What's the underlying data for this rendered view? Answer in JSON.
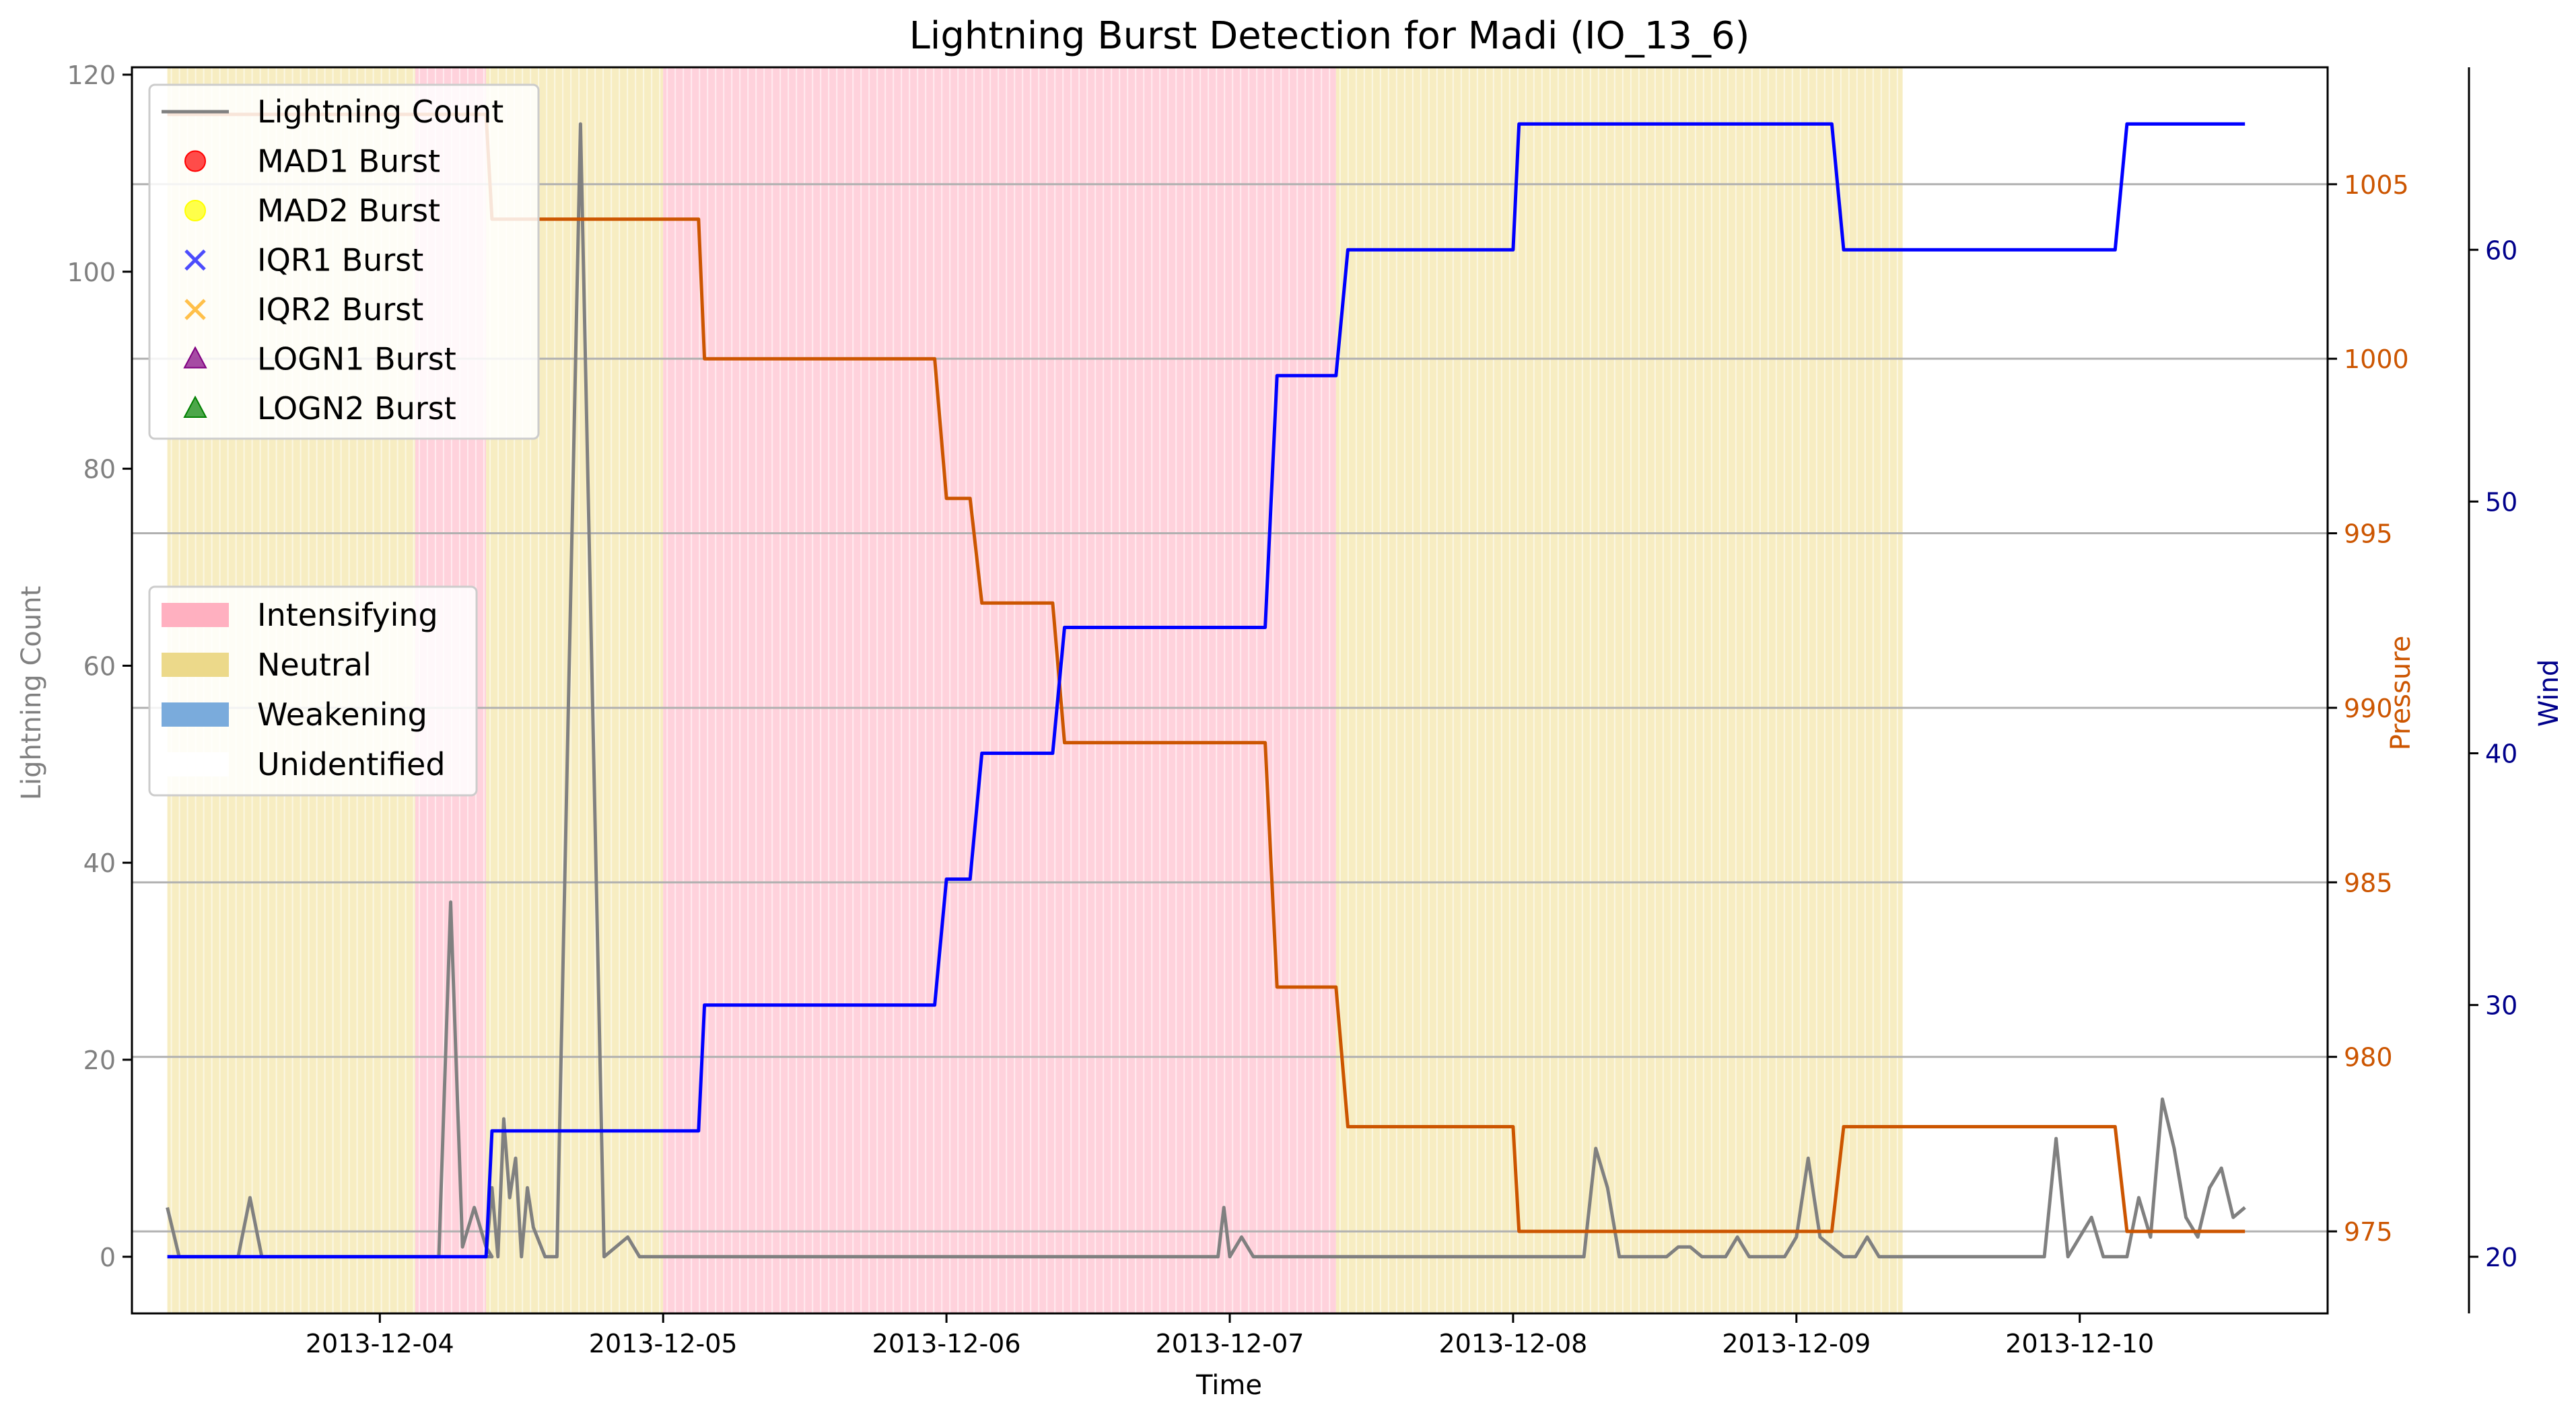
{
  "chart_data": {
    "type": "line",
    "title": "Lightning Burst Detection for Madi (IO_13_6)",
    "xlabel": "Time",
    "x_ticks": [
      "2013-12-04",
      "2013-12-05",
      "2013-12-06",
      "2013-12-07",
      "2013-12-08",
      "2013-12-09",
      "2013-12-10"
    ],
    "x_range": [
      "2013-12-03 03:00",
      "2013-12-10 21:00"
    ],
    "grid": "horizontal lines at right-axis ticks",
    "axes": {
      "left": {
        "label": "Lightning Count",
        "ylim": [
          -5.75,
          120.75
        ],
        "ticks": [
          0,
          20,
          40,
          60,
          80,
          100,
          120
        ],
        "color": "#808080"
      },
      "pressure": {
        "label": "Pressure",
        "ylim": [
          972.65,
          1008.35
        ],
        "ticks": [
          975,
          980,
          985,
          990,
          995,
          1000,
          1005
        ],
        "color": "#cc5500"
      },
      "wind": {
        "label": "Wind",
        "ylim": [
          17.75,
          67.25
        ],
        "ticks": [
          20,
          30,
          40,
          50,
          60
        ],
        "color": "#00008b"
      }
    },
    "legend_series": [
      {
        "name": "Lightning Count",
        "marker": "line",
        "color": "#808080"
      },
      {
        "name": "MAD1 Burst",
        "marker": "circle",
        "color": "#ff0000"
      },
      {
        "name": "MAD2 Burst",
        "marker": "circle",
        "color": "#ffff00"
      },
      {
        "name": "IQR1 Burst",
        "marker": "x",
        "color": "#0000ff"
      },
      {
        "name": "IQR2 Burst",
        "marker": "x",
        "color": "#ffa500"
      },
      {
        "name": "LOGN1 Burst",
        "marker": "triangle",
        "color": "#800080"
      },
      {
        "name": "LOGN2 Burst",
        "marker": "triangle",
        "color": "#008000"
      }
    ],
    "legend_phases": [
      {
        "name": "Intensifying",
        "color": "#ffb0c0"
      },
      {
        "name": "Neutral",
        "color": "#ecd98a"
      },
      {
        "name": "Weakening",
        "color": "#7aabdc"
      },
      {
        "name": "Unidentified",
        "color": "#ffffff"
      }
    ],
    "phases": [
      {
        "label": "Neutral",
        "start": "2013-12-03 06:00",
        "end": "2013-12-04 03:00",
        "color": "#f7edc2"
      },
      {
        "label": "Intensifying",
        "start": "2013-12-04 03:00",
        "end": "2013-12-04 09:00",
        "color": "#ffd2dc"
      },
      {
        "label": "Neutral",
        "start": "2013-12-04 09:00",
        "end": "2013-12-05 00:00",
        "color": "#f7edc2"
      },
      {
        "label": "Intensifying",
        "start": "2013-12-05 00:00",
        "end": "2013-12-07 09:00",
        "color": "#ffd2dc"
      },
      {
        "label": "Neutral",
        "start": "2013-12-07 09:00",
        "end": "2013-12-09 09:00",
        "color": "#f7edc2"
      }
    ],
    "lightning": [
      [
        "2013-12-03 06:00",
        5
      ],
      [
        "2013-12-03 07:00",
        0
      ],
      [
        "2013-12-03 12:00",
        0
      ],
      [
        "2013-12-03 13:00",
        6
      ],
      [
        "2013-12-03 14:00",
        0
      ],
      [
        "2013-12-04 03:00",
        0
      ],
      [
        "2013-12-04 05:00",
        0
      ],
      [
        "2013-12-04 06:00",
        36
      ],
      [
        "2013-12-04 07:00",
        1
      ],
      [
        "2013-12-04 08:00",
        5
      ],
      [
        "2013-12-04 09:00",
        1
      ],
      [
        "2013-12-04 09:30",
        0
      ],
      [
        "2013-12-04 08:50",
        0
      ],
      [
        "2013-12-04 09:00",
        0
      ],
      [
        "2013-12-04 09:30",
        7
      ],
      [
        "2013-12-04 10:00",
        0
      ],
      [
        "2013-12-04 10:30",
        14
      ],
      [
        "2013-12-04 11:00",
        6
      ],
      [
        "2013-12-04 11:30",
        10
      ],
      [
        "2013-12-04 12:00",
        0
      ],
      [
        "2013-12-04 12:30",
        7
      ],
      [
        "2013-12-04 13:00",
        3
      ],
      [
        "2013-12-04 14:00",
        0
      ],
      [
        "2013-12-04 15:00",
        0
      ],
      [
        "2013-12-04 17:00",
        115
      ],
      [
        "2013-12-04 19:00",
        0
      ],
      [
        "2013-12-04 20:00",
        1
      ],
      [
        "2013-12-04 21:00",
        2
      ],
      [
        "2013-12-04 22:00",
        0
      ],
      [
        "2013-12-06 23:00",
        0
      ],
      [
        "2013-12-06 23:30",
        5
      ],
      [
        "2013-12-07 00:00",
        0
      ],
      [
        "2013-12-07 01:00",
        2
      ],
      [
        "2013-12-07 02:00",
        0
      ],
      [
        "2013-12-08 06:00",
        0
      ],
      [
        "2013-12-08 07:00",
        11
      ],
      [
        "2013-12-08 08:00",
        7
      ],
      [
        "2013-12-08 09:00",
        0
      ],
      [
        "2013-12-08 13:00",
        0
      ],
      [
        "2013-12-08 14:00",
        1
      ],
      [
        "2013-12-08 15:00",
        1
      ],
      [
        "2013-12-08 16:00",
        0
      ],
      [
        "2013-12-08 18:00",
        0
      ],
      [
        "2013-12-08 19:00",
        2
      ],
      [
        "2013-12-08 20:00",
        0
      ],
      [
        "2013-12-08 23:00",
        0
      ],
      [
        "2013-12-09 00:00",
        2
      ],
      [
        "2013-12-09 01:00",
        10
      ],
      [
        "2013-12-09 02:00",
        2
      ],
      [
        "2013-12-09 03:00",
        1
      ],
      [
        "2013-12-09 04:00",
        0
      ],
      [
        "2013-12-09 05:00",
        0
      ],
      [
        "2013-12-09 06:00",
        2
      ],
      [
        "2013-12-09 07:00",
        0
      ],
      [
        "2013-12-09 21:00",
        0
      ],
      [
        "2013-12-09 22:00",
        12
      ],
      [
        "2013-12-09 23:00",
        0
      ],
      [
        "2013-12-10 00:00",
        2
      ],
      [
        "2013-12-10 01:00",
        4
      ],
      [
        "2013-12-10 02:00",
        0
      ],
      [
        "2013-12-10 04:00",
        0
      ],
      [
        "2013-12-10 05:00",
        6
      ],
      [
        "2013-12-10 06:00",
        2
      ],
      [
        "2013-12-10 07:00",
        16
      ],
      [
        "2013-12-10 08:00",
        11
      ],
      [
        "2013-12-10 09:00",
        4
      ],
      [
        "2013-12-10 10:00",
        2
      ],
      [
        "2013-12-10 11:00",
        7
      ],
      [
        "2013-12-10 12:00",
        9
      ],
      [
        "2013-12-10 13:00",
        4
      ],
      [
        "2013-12-10 14:00",
        5
      ]
    ],
    "pressure": [
      [
        "2013-12-03 06:00",
        1007
      ],
      [
        "2013-12-04 09:00",
        1007
      ],
      [
        "2013-12-04 09:30",
        1004
      ],
      [
        "2013-12-05 03:00",
        1004
      ],
      [
        "2013-12-05 03:30",
        1000
      ],
      [
        "2013-12-05 23:00",
        1000
      ],
      [
        "2013-12-06 00:00",
        996
      ],
      [
        "2013-12-06 02:00",
        996
      ],
      [
        "2013-12-06 03:00",
        993
      ],
      [
        "2013-12-06 09:00",
        993
      ],
      [
        "2013-12-06 10:00",
        989
      ],
      [
        "2013-12-07 03:00",
        989
      ],
      [
        "2013-12-07 04:00",
        982
      ],
      [
        "2013-12-07 09:00",
        982
      ],
      [
        "2013-12-07 10:00",
        978
      ],
      [
        "2013-12-08 00:00",
        978
      ],
      [
        "2013-12-08 00:30",
        975
      ],
      [
        "2013-12-09 03:00",
        975
      ],
      [
        "2013-12-09 04:00",
        978
      ],
      [
        "2013-12-10 03:00",
        978
      ],
      [
        "2013-12-10 04:00",
        975
      ],
      [
        "2013-12-10 14:00",
        975
      ]
    ],
    "wind": [
      [
        "2013-12-03 06:00",
        20
      ],
      [
        "2013-12-04 09:00",
        20
      ],
      [
        "2013-12-04 09:30",
        25
      ],
      [
        "2013-12-05 03:00",
        25
      ],
      [
        "2013-12-05 03:30",
        30
      ],
      [
        "2013-12-05 23:00",
        30
      ],
      [
        "2013-12-06 00:00",
        35
      ],
      [
        "2013-12-06 02:00",
        35
      ],
      [
        "2013-12-06 03:00",
        40
      ],
      [
        "2013-12-06 09:00",
        40
      ],
      [
        "2013-12-06 10:00",
        45
      ],
      [
        "2013-12-07 03:00",
        45
      ],
      [
        "2013-12-07 04:00",
        55
      ],
      [
        "2013-12-07 09:00",
        55
      ],
      [
        "2013-12-07 10:00",
        60
      ],
      [
        "2013-12-08 00:00",
        60
      ],
      [
        "2013-12-08 00:30",
        65
      ],
      [
        "2013-12-09 03:00",
        65
      ],
      [
        "2013-12-09 04:00",
        60
      ],
      [
        "2013-12-10 03:00",
        60
      ],
      [
        "2013-12-10 04:00",
        65
      ],
      [
        "2013-12-10 14:00",
        65
      ]
    ]
  }
}
